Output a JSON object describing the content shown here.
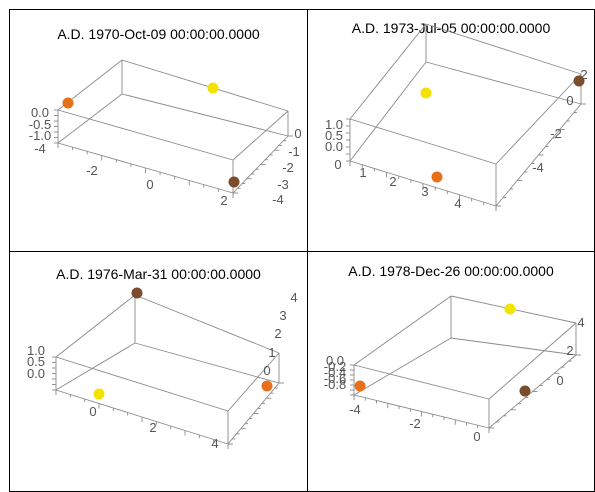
{
  "chart_data": [
    {
      "type": "scatter3d",
      "title": "A.D. 1970-Oct-09 00:00:00.0000",
      "x_ticks": [
        "-2",
        "0",
        "2"
      ],
      "y_ticks": [
        "0",
        "-1",
        "-2",
        "-3",
        "-4"
      ],
      "z_ticks": [
        "0.0",
        "-0.5",
        "-1.0"
      ],
      "extra_ticks": [
        "-4"
      ],
      "points": [
        {
          "color": "#e8701a",
          "label": "orange"
        },
        {
          "color": "#f2e300",
          "label": "yellow"
        },
        {
          "color": "#7a4e2d",
          "label": "brown"
        }
      ]
    },
    {
      "type": "scatter3d",
      "title": "A.D. 1973-Jul-05 00:00:00.0000",
      "x_ticks": [
        "0",
        "1",
        "2",
        "3",
        "4"
      ],
      "y_ticks": [
        "2",
        "0",
        "-2",
        "-4"
      ],
      "z_ticks": [
        "1.0",
        "0.5",
        "0.0"
      ],
      "extra_ticks": [],
      "points": [
        {
          "color": "#f2e300",
          "label": "yellow"
        },
        {
          "color": "#e8701a",
          "label": "orange"
        },
        {
          "color": "#7a4e2d",
          "label": "brown"
        }
      ]
    },
    {
      "type": "scatter3d",
      "title": "A.D. 1976-Mar-31 00:00:00.0000",
      "x_ticks": [
        "0",
        "2",
        "4"
      ],
      "y_ticks": [
        "4",
        "3",
        "2",
        "1",
        "0"
      ],
      "z_ticks": [
        "1.0",
        "0.5",
        "0.0"
      ],
      "extra_ticks": [],
      "points": [
        {
          "color": "#7a4e2d",
          "label": "brown"
        },
        {
          "color": "#f2e300",
          "label": "yellow"
        },
        {
          "color": "#e8701a",
          "label": "orange"
        }
      ]
    },
    {
      "type": "scatter3d",
      "title": "A.D. 1978-Dec-26 00:00:00.0000",
      "x_ticks": [
        "-4",
        "-2",
        "0"
      ],
      "y_ticks": [
        "4",
        "2",
        "0"
      ],
      "z_ticks": [
        "0.0",
        "-0.2",
        "-0.4",
        "-0.6",
        "-0.8"
      ],
      "extra_ticks": [],
      "points": [
        {
          "color": "#e8701a",
          "label": "orange"
        },
        {
          "color": "#f2e300",
          "label": "yellow"
        },
        {
          "color": "#7a4e2d",
          "label": "brown"
        }
      ]
    }
  ]
}
